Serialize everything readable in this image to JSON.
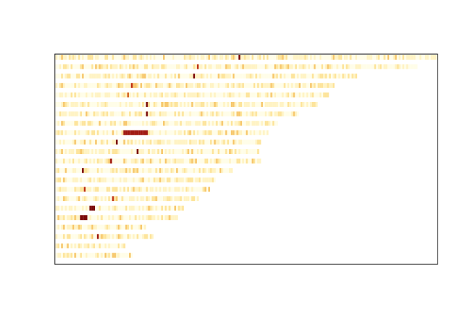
{
  "chart_data": {
    "type": "heatmap",
    "title": "",
    "xlabel": "",
    "ylabel": "",
    "axes_visible": false,
    "grid": false,
    "legend": "none",
    "palette": [
      "#fffde8",
      "#fff3c4",
      "#fde49b",
      "#f7c86e",
      "#e9a14c",
      "#d76a2b",
      "#c0361a",
      "#a01a12",
      "#7a0a0a"
    ],
    "rows": [
      {
        "length": 203,
        "hot": [
          [
            97,
            1.0
          ]
        ]
      },
      {
        "length": 192,
        "hot": [
          [
            75,
            0.75
          ]
        ]
      },
      {
        "length": 160,
        "hot": [
          [
            73,
            0.95
          ]
        ]
      },
      {
        "length": 148,
        "hot": [
          [
            40,
            0.8
          ]
        ]
      },
      {
        "length": 145,
        "hot": [
          [
            38,
            0.65
          ]
        ]
      },
      {
        "length": 139,
        "hot": [
          [
            48,
            0.95
          ]
        ]
      },
      {
        "length": 129,
        "hot": [
          [
            48,
            1.0
          ]
        ]
      },
      {
        "length": 118,
        "hot": []
      },
      {
        "length": 113,
        "hot": [
          [
            36,
            0.9
          ],
          [
            37,
            0.9
          ],
          [
            38,
            0.9
          ],
          [
            39,
            0.9
          ],
          [
            40,
            0.9
          ],
          [
            41,
            0.9
          ],
          [
            42,
            0.9
          ],
          [
            43,
            0.9
          ],
          [
            44,
            0.9
          ],
          [
            45,
            0.9
          ],
          [
            46,
            0.9
          ],
          [
            47,
            0.9
          ],
          [
            48,
            0.9
          ]
        ]
      },
      {
        "length": 109,
        "hot": [
          [
            32,
            1.0
          ]
        ]
      },
      {
        "length": 108,
        "hot": [
          [
            43,
            1.0
          ]
        ]
      },
      {
        "length": 109,
        "hot": [
          [
            29,
            0.9
          ]
        ]
      },
      {
        "length": 94,
        "hot": [
          [
            14,
            0.95
          ]
        ]
      },
      {
        "length": 85,
        "hot": []
      },
      {
        "length": 82,
        "hot": [
          [
            15,
            0.7
          ]
        ]
      },
      {
        "length": 76,
        "hot": [
          [
            30,
            0.7
          ]
        ]
      },
      {
        "length": 68,
        "hot": [
          [
            18,
            1.0
          ],
          [
            19,
            1.0
          ],
          [
            20,
            1.0
          ]
        ]
      },
      {
        "length": 65,
        "hot": [
          [
            13,
            1.0
          ],
          [
            14,
            1.0
          ],
          [
            15,
            1.0
          ],
          [
            16,
            1.0
          ]
        ]
      },
      {
        "length": 48,
        "hot": []
      },
      {
        "length": 52,
        "hot": [
          [
            22,
            0.85
          ]
        ]
      },
      {
        "length": 37,
        "hot": []
      },
      {
        "length": 41,
        "hot": []
      }
    ],
    "columns": 203,
    "value_range": [
      0,
      1
    ]
  }
}
